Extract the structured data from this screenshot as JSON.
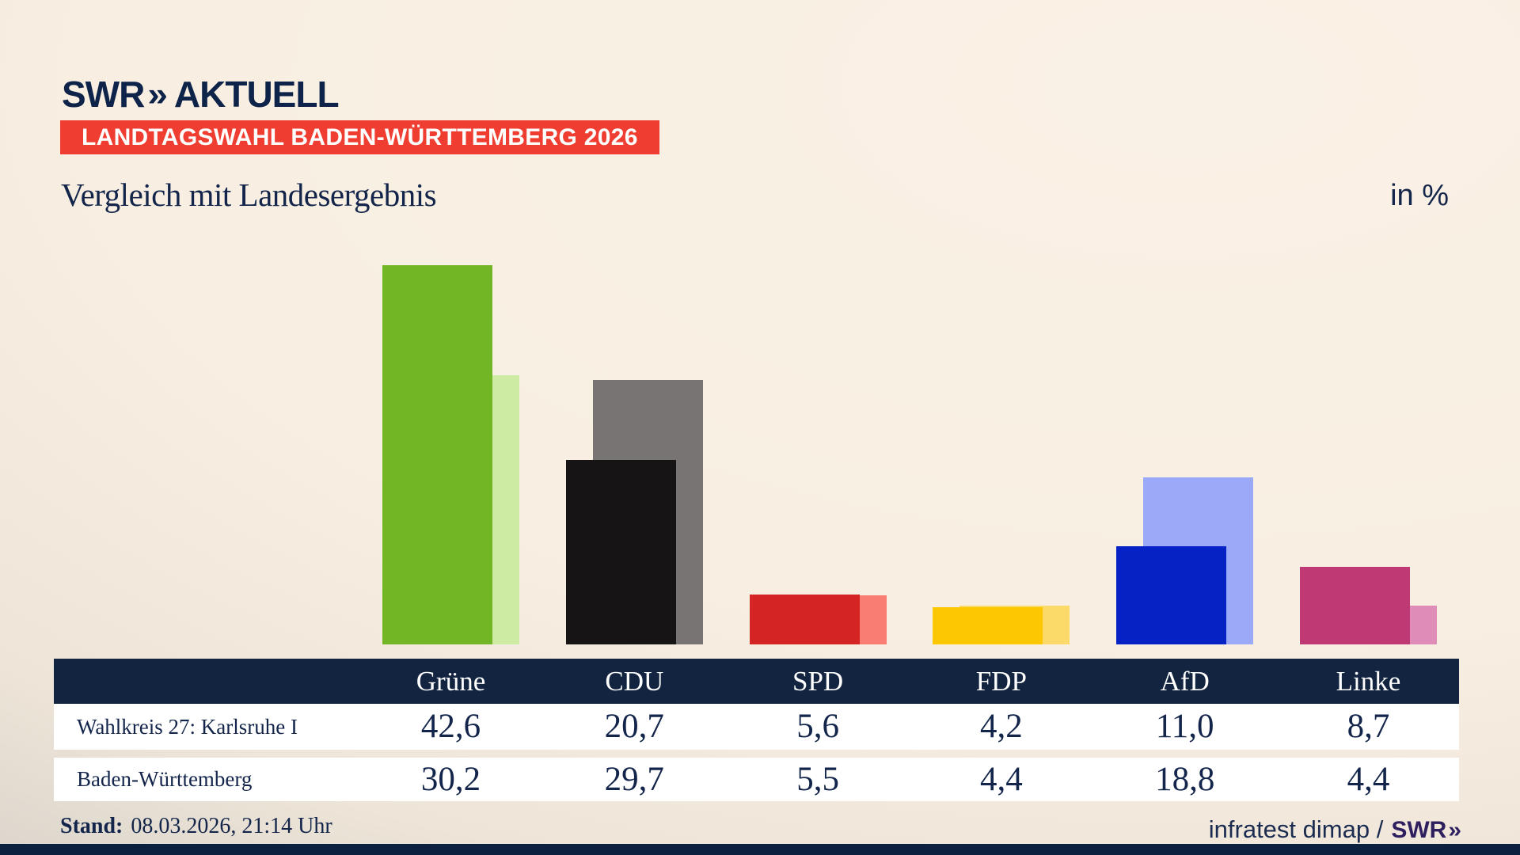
{
  "brand": {
    "logo_text": "SWR",
    "logo_chevrons": "»",
    "logo_suffix": "AKTUELL"
  },
  "badge": {
    "label": "LANDTAGSWAHL BADEN-WÜRTTEMBERG 2026",
    "bg": "#ef3e31"
  },
  "header": {
    "title": "Vergleich mit Landesergebnis",
    "unit": "in %"
  },
  "chart_data": {
    "type": "bar",
    "categories": [
      "Grüne",
      "CDU",
      "SPD",
      "FDP",
      "AfD",
      "Linke"
    ],
    "series": [
      {
        "name": "Wahlkreis 27: Karlsruhe I",
        "values": [
          42.6,
          20.7,
          5.6,
          4.2,
          11.0,
          8.7
        ]
      },
      {
        "name": "Baden-Württemberg",
        "values": [
          30.2,
          29.7,
          5.5,
          4.4,
          18.8,
          4.4
        ]
      }
    ],
    "unit": "%",
    "ylim": [
      0,
      45
    ],
    "grid": false,
    "legend_position": "table below chart",
    "colors": {
      "Grüne": {
        "front": "#72b626",
        "back": "#cdeba3"
      },
      "CDU": {
        "front": "#161414",
        "back": "#787474"
      },
      "SPD": {
        "front": "#d42423",
        "back": "#f97d73"
      },
      "FDP": {
        "front": "#fdc802",
        "back": "#fbda6a"
      },
      "AfD": {
        "front": "#0722c4",
        "back": "#9aa9f8"
      },
      "Linke": {
        "front": "#bf3a74",
        "back": "#df8db8"
      }
    }
  },
  "table": {
    "columns": [
      "Grüne",
      "CDU",
      "SPD",
      "FDP",
      "AfD",
      "Linke"
    ],
    "rows": [
      {
        "label": "Wahlkreis 27: Karlsruhe I",
        "values": [
          "42,6",
          "20,7",
          "5,6",
          "4,2",
          "11,0",
          "8,7"
        ]
      },
      {
        "label": "Baden-Württemberg",
        "values": [
          "30,2",
          "29,7",
          "5,5",
          "4,4",
          "18,8",
          "4,4"
        ]
      }
    ]
  },
  "footer": {
    "stand_label": "Stand:",
    "stand_value": "08.03.2026, 21:14 Uhr",
    "source_text": "infratest dimap /",
    "source_logo": "SWR",
    "source_logo_chevrons": "»"
  }
}
